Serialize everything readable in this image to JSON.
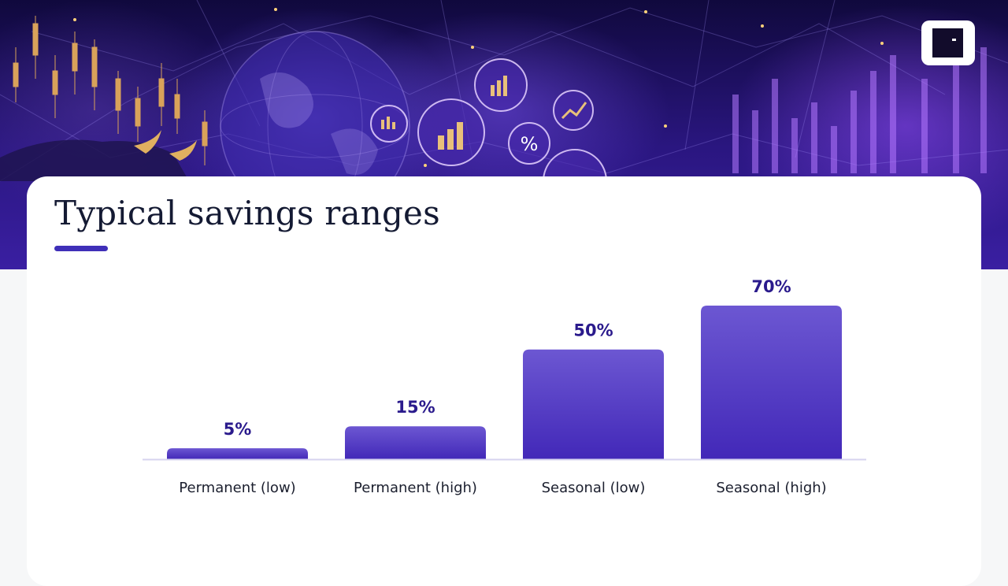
{
  "slide": {
    "title": "Typical savings ranges"
  },
  "colors": {
    "accent": "#3f2fb8",
    "bar_top": "#6c57d2",
    "bar_bottom": "#4228b8",
    "value_label": "#2a1a8c",
    "category_label": "#1b1f2e",
    "baseline": "#d6d3ef"
  },
  "icons": [
    "bull-icon",
    "globe-icon",
    "bar-chart-icon",
    "percent-icon",
    "trend-up-icon",
    "candlestick-icon"
  ],
  "chart_data": {
    "type": "bar",
    "categories": [
      "Permanent (low)",
      "Permanent (high)",
      "Seasonal (low)",
      "Seasonal (high)"
    ],
    "values": [
      5,
      15,
      50,
      70
    ],
    "value_labels": [
      "5%",
      "15%",
      "50%",
      "70%"
    ],
    "title": "",
    "xlabel": "",
    "ylabel": "",
    "ylim": [
      0,
      70
    ],
    "grid": false,
    "legend": "none"
  }
}
